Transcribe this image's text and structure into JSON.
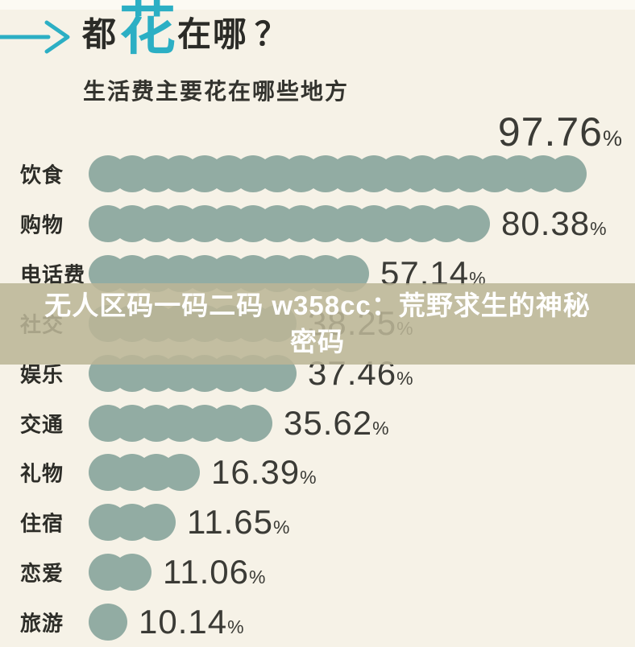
{
  "header": {
    "title_prefix": "都",
    "title_highlight": "花",
    "title_suffix": "在哪",
    "title_question": "？",
    "subtitle": "生活费主要花在哪些地方",
    "accent_color": "#2cafc4"
  },
  "overlay": {
    "text": "无人区码一码二码 w358cc：荒野求生的神秘密码",
    "bg": "rgba(187,181,151,0.87)",
    "text_color": "#ffffff"
  },
  "chart_data": {
    "type": "bar",
    "orientation": "horizontal-pictogram",
    "title": "都花在哪？",
    "subtitle": "生活费主要花在哪些地方",
    "unit": "%",
    "categories": [
      "饮食",
      "购物",
      "电话费",
      "社交",
      "娱乐",
      "交通",
      "礼物",
      "住宿",
      "恋爱",
      "旅游"
    ],
    "values": [
      97.76,
      80.38,
      57.14,
      38.25,
      37.46,
      35.62,
      16.39,
      11.65,
      11.06,
      10.14
    ],
    "value_labels": [
      "97.76",
      "80.38",
      "57.14",
      "38.25",
      "37.46",
      "35.62",
      "16.39",
      "11.65",
      "11.06",
      "10.14"
    ],
    "circle_counts": [
      20,
      16,
      11,
      8,
      8,
      7,
      4,
      3,
      2,
      1
    ],
    "bar_color": "#92aca3",
    "text_color": "#3b3b36",
    "xlim": [
      0,
      100
    ],
    "legend": "none",
    "grid": false
  }
}
